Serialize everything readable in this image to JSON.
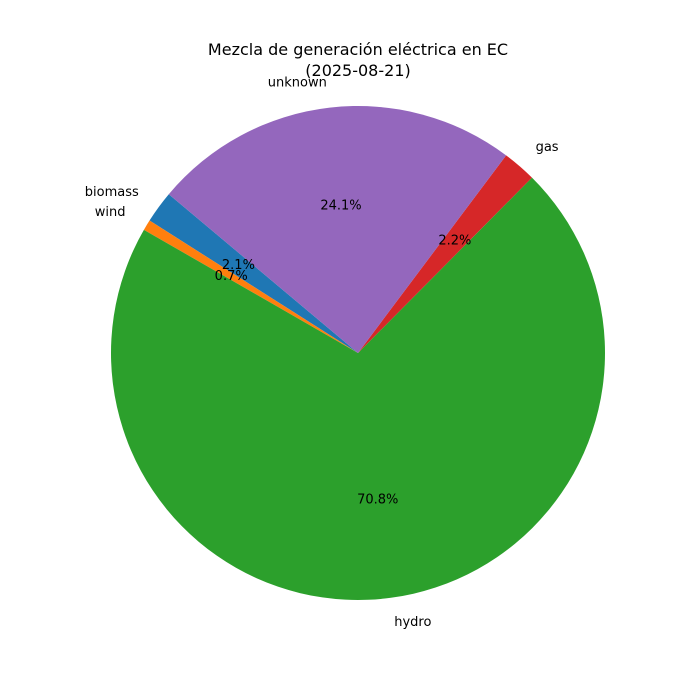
{
  "chart_data": {
    "type": "pie",
    "title": "Mezcla de generación eléctrica en EC",
    "subtitle": "(2025-08-21)",
    "slices": [
      {
        "label": "biomass",
        "value": 2.1,
        "pct_label": "2.1%",
        "color": "#1f77b4"
      },
      {
        "label": "wind",
        "value": 0.7,
        "pct_label": "0.7%",
        "color": "#ff7f0e"
      },
      {
        "label": "hydro",
        "value": 70.8,
        "pct_label": "70.8%",
        "color": "#2ca02c"
      },
      {
        "label": "gas",
        "value": 2.2,
        "pct_label": "2.2%",
        "color": "#d62728"
      },
      {
        "label": "unknown",
        "value": 24.1,
        "pct_label": "24.1%",
        "color": "#9467bd"
      }
    ]
  }
}
